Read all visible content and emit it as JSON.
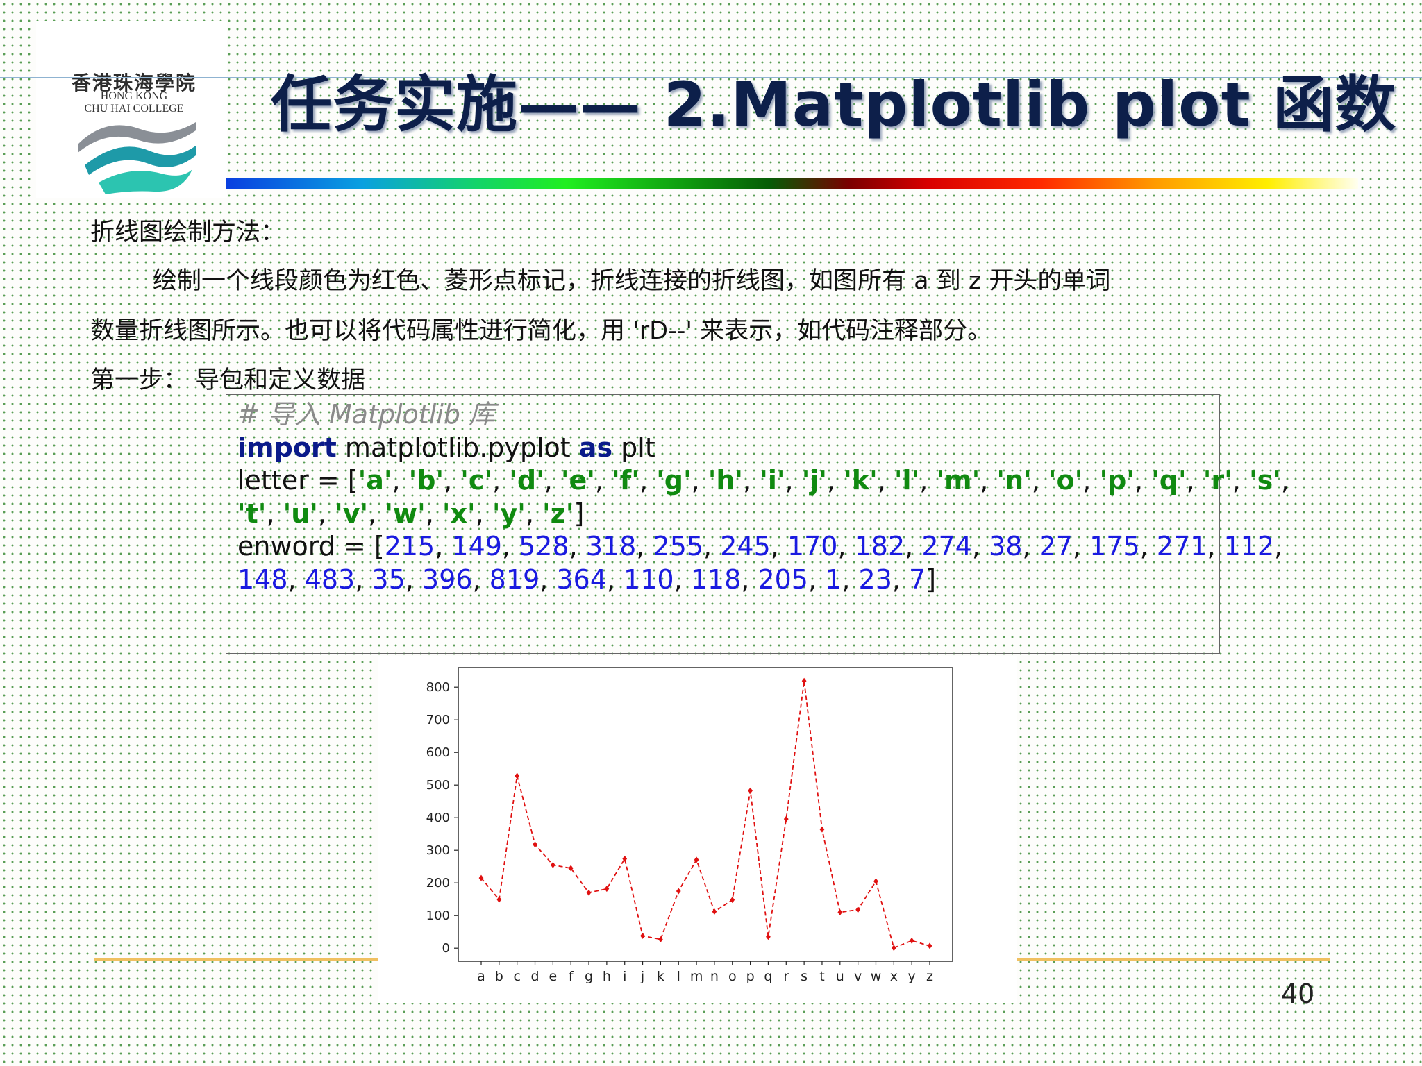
{
  "logo": {
    "name_cn": "香港珠海學院",
    "name_en_1": "HONG KONG",
    "name_en_2": "CHU HAI COLLEGE",
    "wave_colors": [
      "#8a8f96",
      "#1e9aa8",
      "#2cc4b0"
    ]
  },
  "slide": {
    "title": "任务实施—— 2.Matplotlib plot 函数",
    "line1": "折线图绘制方法：",
    "line2": "绘制一个线段颜色为红色、菱形点标记，折线连接的折线图，如图所有 a 到 z 开头的单词",
    "line3": "数量折线图所示。也可以将代码属性进行简化，用 'rD--' 来表示，如代码注释部分。",
    "line4": "第一步：  导包和定义数据",
    "page_number": "40"
  },
  "code": {
    "comment": "#  导入 Matplotlib 库",
    "import_kw": "import",
    "import_module": " matplotlib.pyplot ",
    "as_kw": "as",
    "import_alias": " plt",
    "letter_prefix": "letter = [",
    "letter_line1": [
      "'a'",
      "'b'",
      "'c'",
      "'d'",
      "'e'",
      "'f'",
      "'g'",
      "'h'",
      "'i'",
      "'j'",
      "'k'",
      "'l'",
      "'m'",
      "'n'",
      "'o'",
      "'p'",
      "'q'",
      "'r'",
      "'s'"
    ],
    "letter_line2": [
      "'t'",
      "'u'",
      "'v'",
      "'w'",
      "'x'",
      "'y'",
      "'z'"
    ],
    "enword_prefix": "enword = [",
    "enword_line1": [
      "215",
      "149",
      "528",
      "318",
      "255",
      "245",
      "170",
      "182",
      "274",
      "38",
      "27",
      "175",
      "271",
      "112"
    ],
    "enword_line2": [
      "148",
      "483",
      "35",
      "396",
      "819",
      "364",
      "110",
      "118",
      "205",
      "1",
      "23",
      "7"
    ]
  },
  "chart_data": {
    "type": "line",
    "categories": [
      "a",
      "b",
      "c",
      "d",
      "e",
      "f",
      "g",
      "h",
      "i",
      "j",
      "k",
      "l",
      "m",
      "n",
      "o",
      "p",
      "q",
      "r",
      "s",
      "t",
      "u",
      "v",
      "w",
      "x",
      "y",
      "z"
    ],
    "values": [
      215,
      149,
      528,
      318,
      255,
      245,
      170,
      182,
      274,
      38,
      27,
      175,
      271,
      112,
      148,
      483,
      35,
      396,
      819,
      364,
      110,
      118,
      205,
      1,
      23,
      7
    ],
    "yticks": [
      0,
      100,
      200,
      300,
      400,
      500,
      600,
      700,
      800
    ],
    "ylim": [
      -40,
      860
    ],
    "line_color": "#e01010",
    "line_style": "dashed",
    "marker": "diamond",
    "grid": false,
    "title": "",
    "xlabel": "",
    "ylabel": ""
  }
}
